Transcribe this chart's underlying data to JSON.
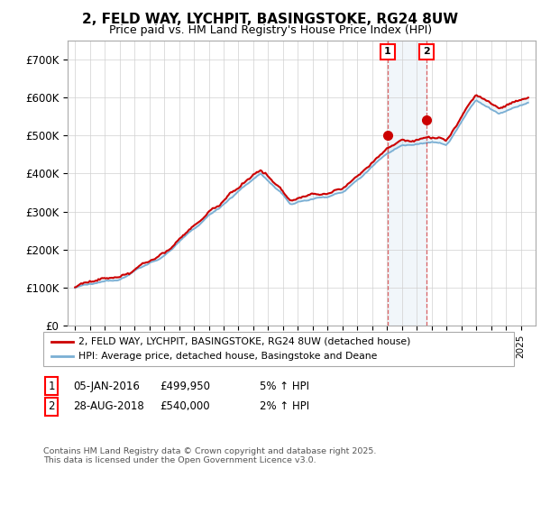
{
  "title": "2, FELD WAY, LYCHPIT, BASINGSTOKE, RG24 8UW",
  "subtitle": "Price paid vs. HM Land Registry's House Price Index (HPI)",
  "ylim": [
    0,
    750000
  ],
  "yticks": [
    0,
    100000,
    200000,
    300000,
    400000,
    500000,
    600000,
    700000
  ],
  "ytick_labels": [
    "£0",
    "£100K",
    "£200K",
    "£300K",
    "£400K",
    "£500K",
    "£600K",
    "£700K"
  ],
  "xlim_left": 1994.5,
  "xlim_right": 2026.0,
  "sale1_date": 2016.04,
  "sale1_price": 499950,
  "sale2_date": 2018.67,
  "sale2_price": 540000,
  "hpi_color": "#7aafd4",
  "price_color": "#cc0000",
  "legend_line1": "2, FELD WAY, LYCHPIT, BASINGSTOKE, RG24 8UW (detached house)",
  "legend_line2": "HPI: Average price, detached house, Basingstoke and Deane",
  "footnote": "Contains HM Land Registry data © Crown copyright and database right 2025.\nThis data is licensed under the Open Government Licence v3.0.",
  "background_color": "#ffffff",
  "grid_color": "#d0d0d0"
}
